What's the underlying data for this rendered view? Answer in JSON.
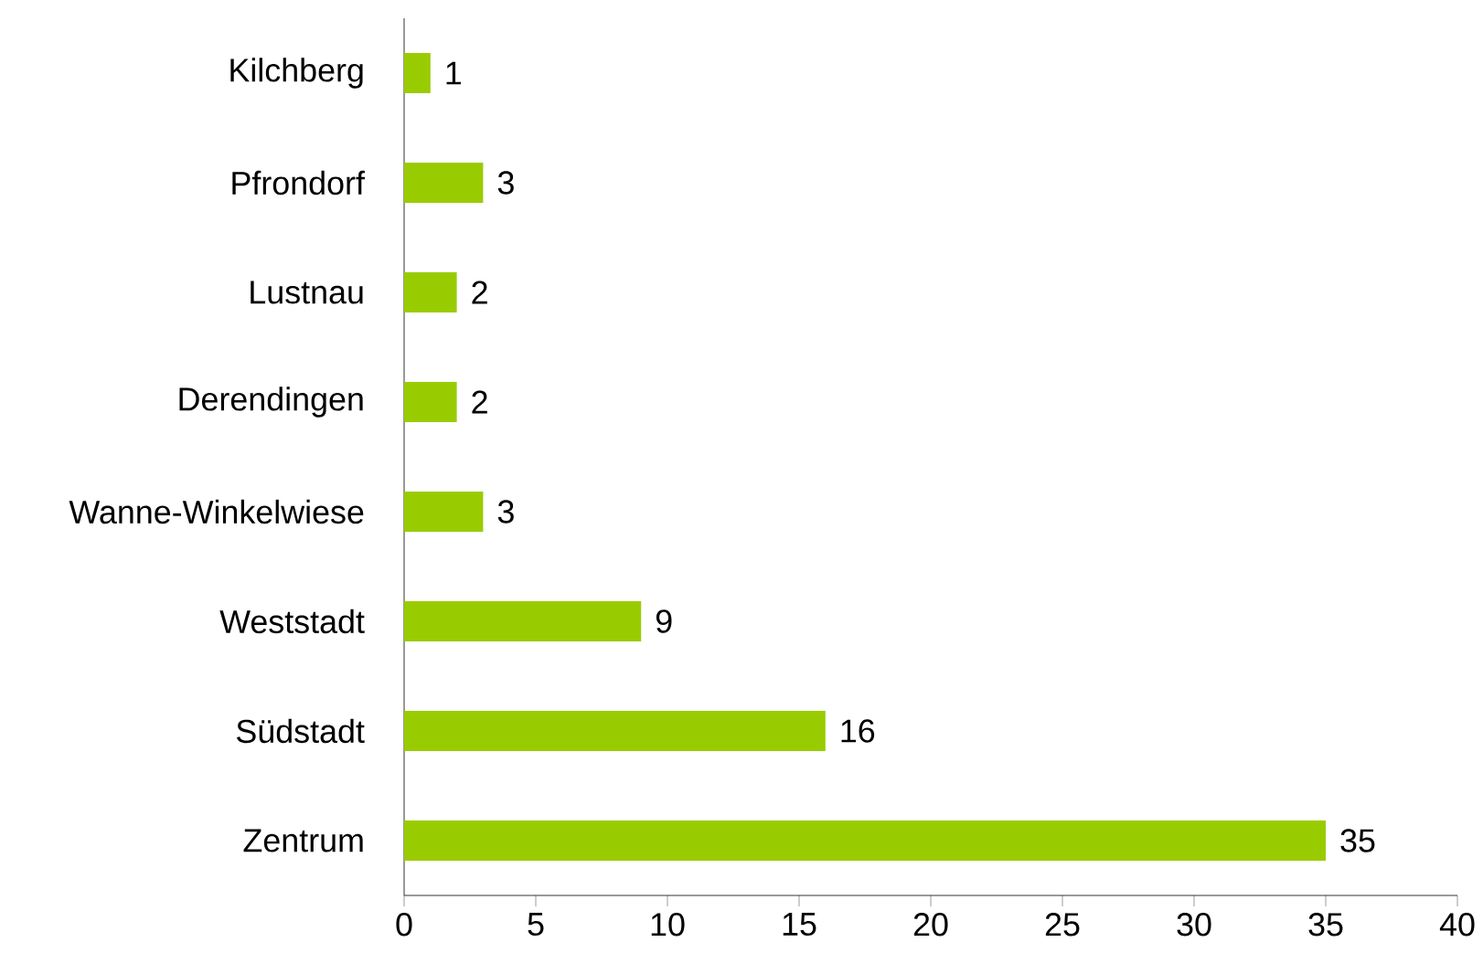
{
  "chart_data": {
    "type": "bar",
    "orientation": "horizontal",
    "categories": [
      "Kilchberg",
      "Pfrondorf",
      "Lustnau",
      "Derendingen",
      "Wanne-Winkelwiese",
      "Weststadt",
      "Südstadt",
      "Zentrum"
    ],
    "values": [
      1,
      3,
      2,
      2,
      3,
      9,
      16,
      35
    ],
    "color": "#99cc00",
    "xlim": [
      0,
      40
    ],
    "xticks": [
      0,
      5,
      10,
      15,
      20,
      25,
      30,
      35,
      40
    ],
    "data_labels": true
  }
}
